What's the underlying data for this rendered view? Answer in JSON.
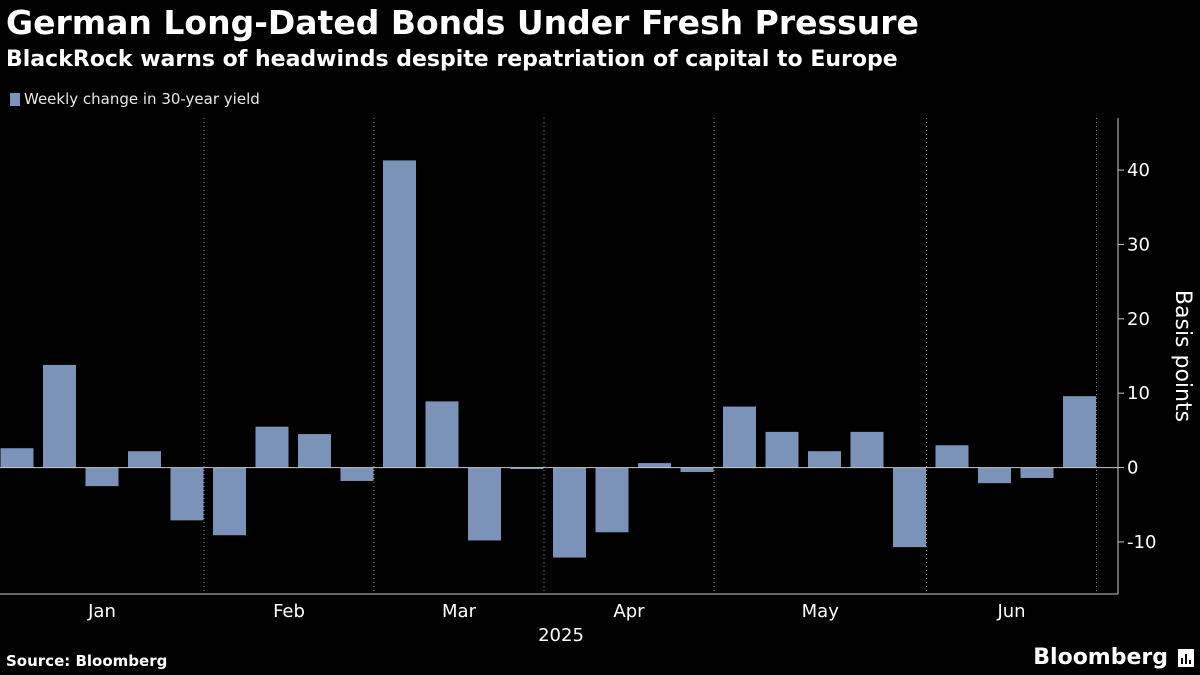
{
  "header": {
    "title": "German Long-Dated Bonds Under Fresh Pressure",
    "subtitle": "BlackRock warns of headwinds despite repatriation of capital to Europe"
  },
  "footer": {
    "source": "Source: Bloomberg",
    "brand": "Bloomberg",
    "brand_icon": "bloomberg-terminal-icon"
  },
  "colors": {
    "background": "#000000",
    "bar": "#7b93b8",
    "grid": "#8a8a8a",
    "text": "#ffffff"
  },
  "chart_data": {
    "type": "bar",
    "title": "German Long-Dated Bonds Under Fresh Pressure",
    "subtitle": "BlackRock warns of headwinds despite repatriation of capital to Europe",
    "ylabel": "Basis points",
    "xlabel": "2025",
    "ylim": [
      -17,
      47
    ],
    "yticks": [
      -10,
      0,
      10,
      20,
      30,
      40
    ],
    "month_labels": [
      "Jan",
      "Feb",
      "Mar",
      "Apr",
      "May",
      "Jun"
    ],
    "grid": "vertical dotted month separators",
    "legend_position": "top-left",
    "series": [
      {
        "name": "Weekly change in 30-year yield",
        "color": "#7b93b8",
        "values": [
          2.6,
          13.8,
          -2.5,
          2.2,
          -7.1,
          -9.1,
          5.5,
          4.5,
          -1.8,
          41.3,
          8.9,
          -9.8,
          -0.2,
          -12.1,
          -8.7,
          0.6,
          -0.6,
          8.2,
          4.8,
          2.2,
          4.8,
          -10.7,
          3.0,
          -2.1,
          -1.4,
          9.6
        ]
      }
    ]
  }
}
